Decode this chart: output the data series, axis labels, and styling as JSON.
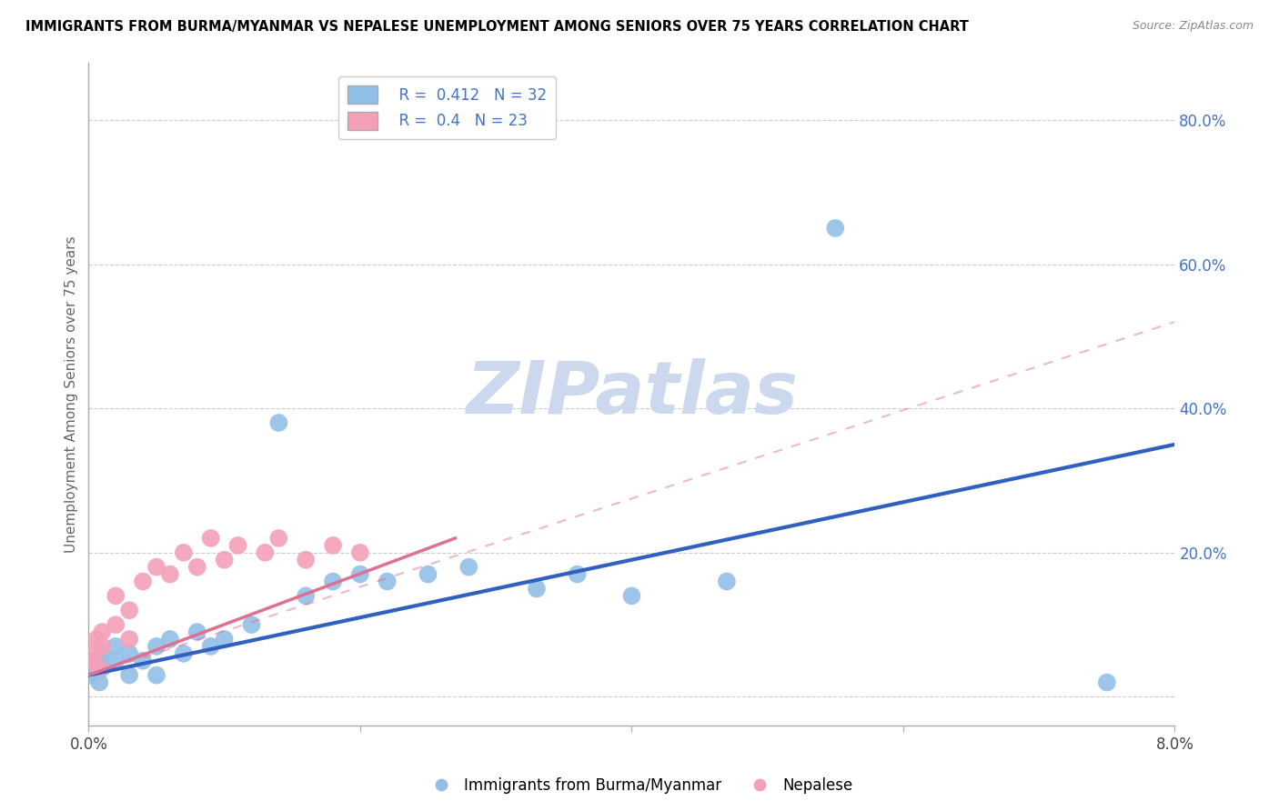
{
  "title": "IMMIGRANTS FROM BURMA/MYANMAR VS NEPALESE UNEMPLOYMENT AMONG SENIORS OVER 75 YEARS CORRELATION CHART",
  "source": "Source: ZipAtlas.com",
  "ylabel": "Unemployment Among Seniors over 75 years",
  "xlim": [
    0.0,
    0.08
  ],
  "ylim": [
    -0.04,
    0.88
  ],
  "xticks": [
    0.0,
    0.02,
    0.04,
    0.06,
    0.08
  ],
  "yticks": [
    0.0,
    0.2,
    0.4,
    0.6,
    0.8
  ],
  "blue_R": 0.412,
  "blue_N": 32,
  "pink_R": 0.4,
  "pink_N": 23,
  "blue_color": "#92bfe8",
  "pink_color": "#f4a0b8",
  "blue_line_color": "#3060c0",
  "pink_line_color": "#e07090",
  "watermark": "ZIPatlas",
  "watermark_color": "#ccd8ee",
  "blue_scatter_x": [
    0.0002,
    0.0004,
    0.0006,
    0.0008,
    0.001,
    0.001,
    0.002,
    0.002,
    0.003,
    0.003,
    0.004,
    0.005,
    0.005,
    0.006,
    0.007,
    0.008,
    0.009,
    0.01,
    0.012,
    0.014,
    0.016,
    0.018,
    0.02,
    0.022,
    0.025,
    0.028,
    0.033,
    0.036,
    0.04,
    0.047,
    0.055,
    0.075
  ],
  "blue_scatter_y": [
    0.03,
    0.04,
    0.05,
    0.02,
    0.06,
    0.04,
    0.07,
    0.05,
    0.06,
    0.03,
    0.05,
    0.07,
    0.03,
    0.08,
    0.06,
    0.09,
    0.07,
    0.08,
    0.1,
    0.38,
    0.14,
    0.16,
    0.17,
    0.16,
    0.17,
    0.18,
    0.15,
    0.17,
    0.14,
    0.16,
    0.65,
    0.02
  ],
  "pink_scatter_x": [
    0.0002,
    0.0004,
    0.0006,
    0.0008,
    0.001,
    0.001,
    0.002,
    0.002,
    0.003,
    0.003,
    0.004,
    0.005,
    0.006,
    0.007,
    0.008,
    0.009,
    0.01,
    0.011,
    0.013,
    0.014,
    0.016,
    0.018,
    0.02
  ],
  "pink_scatter_y": [
    0.05,
    0.06,
    0.08,
    0.04,
    0.07,
    0.09,
    0.1,
    0.14,
    0.12,
    0.08,
    0.16,
    0.18,
    0.17,
    0.2,
    0.18,
    0.22,
    0.19,
    0.21,
    0.2,
    0.22,
    0.19,
    0.21,
    0.2
  ],
  "blue_trend_x": [
    0.0,
    0.08
  ],
  "blue_trend_y": [
    0.03,
    0.35
  ],
  "pink_trend_x": [
    0.0,
    0.027
  ],
  "pink_trend_y": [
    0.03,
    0.22
  ],
  "pink_dash_trend_x": [
    0.0,
    0.08
  ],
  "pink_dash_trend_y": [
    0.03,
    0.52
  ]
}
